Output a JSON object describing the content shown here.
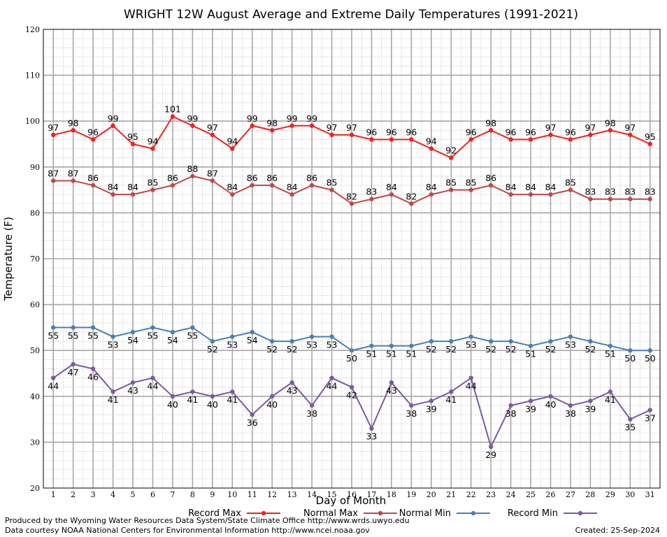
{
  "chart_data": {
    "type": "line",
    "title": "WRIGHT 12W August Average and Extreme Daily Temperatures (1991-2021)",
    "xlabel": "Day of Month",
    "ylabel": "Temperature (F)",
    "ylim": [
      20,
      120
    ],
    "yticks": [
      20,
      30,
      40,
      50,
      60,
      70,
      80,
      90,
      100,
      110,
      120
    ],
    "x": [
      1,
      2,
      3,
      4,
      5,
      6,
      7,
      8,
      9,
      10,
      11,
      12,
      13,
      14,
      15,
      16,
      17,
      18,
      19,
      20,
      21,
      22,
      23,
      24,
      25,
      26,
      27,
      28,
      29,
      30,
      31
    ],
    "grid": true,
    "legend_position": "bottom",
    "series": [
      {
        "name": "Record Max",
        "color": "#ee2222",
        "values": [
          97,
          98,
          96,
          99,
          95,
          94,
          101,
          99,
          97,
          94,
          99,
          98,
          99,
          99,
          97,
          97,
          96,
          96,
          96,
          94,
          92,
          96,
          98,
          96,
          96,
          97,
          96,
          97,
          98,
          97,
          95
        ]
      },
      {
        "name": "Normal Max",
        "color": "#c04848",
        "values": [
          87,
          87,
          86,
          84,
          84,
          85,
          86,
          88,
          87,
          84,
          86,
          86,
          84,
          86,
          85,
          82,
          83,
          84,
          82,
          84,
          85,
          85,
          86,
          84,
          84,
          84,
          85,
          83,
          83,
          83,
          83
        ]
      },
      {
        "name": "Normal Min",
        "color": "#4a7fb5",
        "values": [
          55,
          55,
          55,
          53,
          54,
          55,
          54,
          55,
          52,
          53,
          54,
          52,
          52,
          53,
          53,
          50,
          51,
          51,
          51,
          52,
          52,
          53,
          52,
          52,
          51,
          52,
          53,
          52,
          51,
          50,
          50
        ]
      },
      {
        "name": "Record Min",
        "color": "#7b5a9e",
        "values": [
          44,
          47,
          46,
          41,
          43,
          44,
          40,
          41,
          40,
          41,
          36,
          40,
          43,
          38,
          44,
          42,
          33,
          43,
          38,
          39,
          41,
          44,
          29,
          38,
          39,
          40,
          38,
          39,
          41,
          35,
          37
        ]
      }
    ]
  },
  "footer": {
    "produced_by": "Produced by the Wyoming Water Resources Data System/State Climate Office http://www.wrds.uwyo.edu",
    "courtesy": "Data courtesy NOAA National Centers for Environmental Information http://www.ncei.noaa.gov",
    "created": "Created:  25-Sep-2024"
  }
}
